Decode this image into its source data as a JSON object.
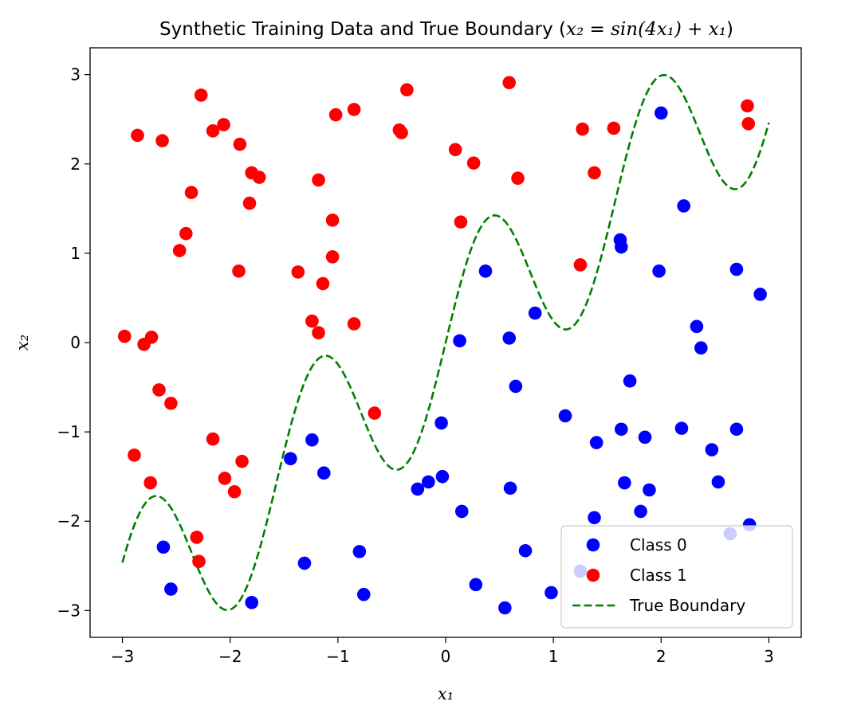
{
  "chart_data": {
    "type": "scatter",
    "title": "Synthetic Training Data and True Boundary ($x_2 = \\sin(4x_1) + x_1$)",
    "title_parts": {
      "prefix": "Synthetic Training Data and True Boundary (",
      "math": "x₂ = sin(4x₁) + x₁",
      "suffix": ")"
    },
    "xlabel": "x₁",
    "ylabel": "x₂",
    "xlim": [
      -3.3,
      3.3
    ],
    "ylim": [
      -3.3,
      3.3
    ],
    "x_ticks": [
      -3,
      -2,
      -1,
      0,
      1,
      2,
      3
    ],
    "y_ticks": [
      -3,
      -2,
      -1,
      0,
      1,
      2,
      3
    ],
    "x_tick_labels": [
      "−3",
      "−2",
      "−1",
      "0",
      "1",
      "2",
      "3"
    ],
    "y_tick_labels": [
      "−3",
      "−2",
      "−1",
      "0",
      "1",
      "2",
      "3"
    ],
    "grid": false,
    "legend_position": "lower-right",
    "series": [
      {
        "name": "Class 0",
        "kind": "scatter",
        "color": "#0000ff",
        "points": [
          [
            -2.62,
            -2.29
          ],
          [
            -2.55,
            -2.76
          ],
          [
            -1.8,
            -2.91
          ],
          [
            -1.44,
            -1.3
          ],
          [
            -1.24,
            -1.09
          ],
          [
            -1.31,
            -2.47
          ],
          [
            -1.13,
            -1.46
          ],
          [
            -0.8,
            -2.34
          ],
          [
            -0.76,
            -2.82
          ],
          [
            -0.26,
            -1.64
          ],
          [
            -0.16,
            -1.56
          ],
          [
            -0.04,
            -0.9
          ],
          [
            -0.03,
            -1.5
          ],
          [
            0.13,
            0.02
          ],
          [
            0.15,
            -1.89
          ],
          [
            0.28,
            -2.71
          ],
          [
            0.37,
            0.8
          ],
          [
            0.55,
            -2.97
          ],
          [
            0.59,
            0.05
          ],
          [
            0.6,
            -1.63
          ],
          [
            0.65,
            -0.49
          ],
          [
            0.74,
            -2.33
          ],
          [
            0.83,
            0.33
          ],
          [
            0.98,
            -2.8
          ],
          [
            1.11,
            -0.82
          ],
          [
            1.25,
            -2.56
          ],
          [
            1.38,
            -1.96
          ],
          [
            1.4,
            -1.12
          ],
          [
            1.62,
            1.15
          ],
          [
            1.63,
            1.07
          ],
          [
            1.63,
            -0.97
          ],
          [
            1.66,
            -1.57
          ],
          [
            1.71,
            -0.43
          ],
          [
            1.81,
            -1.89
          ],
          [
            1.85,
            -1.06
          ],
          [
            1.89,
            -1.65
          ],
          [
            1.98,
            0.8
          ],
          [
            2.0,
            2.57
          ],
          [
            2.19,
            -0.96
          ],
          [
            2.21,
            1.53
          ],
          [
            2.33,
            0.18
          ],
          [
            2.37,
            -0.06
          ],
          [
            2.47,
            -1.2
          ],
          [
            2.53,
            -1.56
          ],
          [
            2.64,
            -2.14
          ],
          [
            2.7,
            0.82
          ],
          [
            2.7,
            -0.97
          ],
          [
            2.82,
            -2.04
          ],
          [
            2.92,
            0.54
          ]
        ]
      },
      {
        "name": "Class 1",
        "kind": "scatter",
        "color": "#ff0000",
        "points": [
          [
            -2.98,
            0.07
          ],
          [
            -2.89,
            -1.26
          ],
          [
            -2.86,
            2.32
          ],
          [
            -2.8,
            -0.02
          ],
          [
            -2.74,
            -1.57
          ],
          [
            -2.73,
            0.06
          ],
          [
            -2.66,
            -0.53
          ],
          [
            -2.63,
            2.26
          ],
          [
            -2.55,
            -0.68
          ],
          [
            -2.47,
            1.03
          ],
          [
            -2.41,
            1.22
          ],
          [
            -2.36,
            1.68
          ],
          [
            -2.31,
            -2.18
          ],
          [
            -2.29,
            -2.45
          ],
          [
            -2.27,
            2.77
          ],
          [
            -2.16,
            2.37
          ],
          [
            -2.16,
            -1.08
          ],
          [
            -2.06,
            2.44
          ],
          [
            -2.05,
            -1.52
          ],
          [
            -1.96,
            -1.67
          ],
          [
            -1.92,
            0.8
          ],
          [
            -1.91,
            2.22
          ],
          [
            -1.89,
            -1.33
          ],
          [
            -1.82,
            1.56
          ],
          [
            -1.8,
            1.9
          ],
          [
            -1.73,
            1.85
          ],
          [
            -1.37,
            0.79
          ],
          [
            -1.24,
            0.24
          ],
          [
            -1.18,
            1.82
          ],
          [
            -1.18,
            0.11
          ],
          [
            -1.14,
            0.66
          ],
          [
            -1.05,
            1.37
          ],
          [
            -1.05,
            0.96
          ],
          [
            -1.02,
            2.55
          ],
          [
            -0.85,
            2.61
          ],
          [
            -0.85,
            0.21
          ],
          [
            -0.66,
            -0.79
          ],
          [
            -0.43,
            2.38
          ],
          [
            -0.41,
            2.35
          ],
          [
            -0.36,
            2.83
          ],
          [
            0.09,
            2.16
          ],
          [
            0.14,
            1.35
          ],
          [
            0.26,
            2.01
          ],
          [
            0.59,
            2.91
          ],
          [
            0.67,
            1.84
          ],
          [
            1.25,
            0.87
          ],
          [
            1.27,
            2.39
          ],
          [
            1.38,
            1.9
          ],
          [
            1.56,
            2.4
          ],
          [
            2.8,
            2.65
          ],
          [
            2.81,
            2.45
          ]
        ]
      },
      {
        "name": "True Boundary",
        "kind": "line",
        "style": "dashed",
        "color": "#008000",
        "function": "x2 = sin(4*x1) + x1",
        "x_range": [
          -3,
          3
        ]
      }
    ]
  }
}
